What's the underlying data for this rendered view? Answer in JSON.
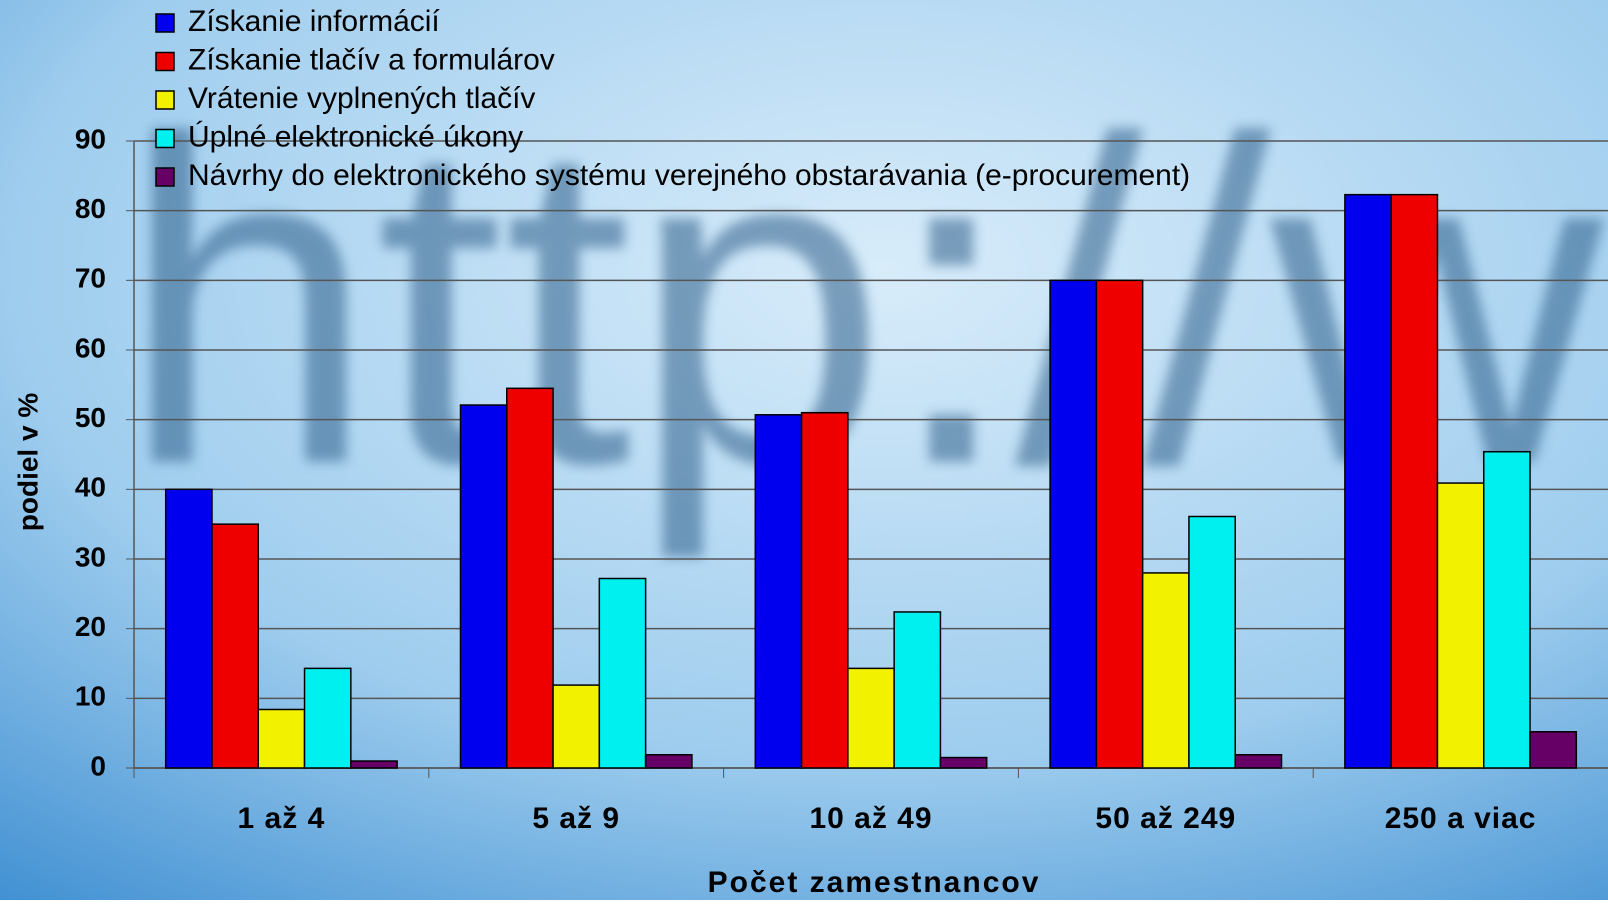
{
  "background_text": "http://w",
  "chart_data": {
    "type": "bar",
    "x_label": "Počet zamestnancov",
    "y_label": "podiel v %",
    "categories": [
      "1 až 4",
      "5 až 9",
      "10 až 49",
      "50 až 249",
      "250 a viac"
    ],
    "series": [
      {
        "name": "Získanie informácií",
        "color": "#0000ee",
        "values": [
          40,
          52.1,
          50.7,
          70,
          82.3
        ]
      },
      {
        "name": "Získanie tlačív a formulárov",
        "color": "#ee0000",
        "values": [
          35,
          54.5,
          51,
          70,
          82.3
        ]
      },
      {
        "name": "Vrátenie vyplnených tlačív",
        "color": "#f2f200",
        "values": [
          8.4,
          11.9,
          14.3,
          28,
          40.9
        ]
      },
      {
        "name": "Úplné elektronické úkony",
        "color": "#00f0f0",
        "values": [
          14.3,
          27.2,
          22.4,
          36.1,
          45.4
        ]
      },
      {
        "name": "Návrhy do elektronického systému verejného obstarávania (e-procurement)",
        "color": "#660066",
        "values": [
          1,
          1.9,
          1.5,
          1.9,
          5.2
        ]
      }
    ],
    "ylim": [
      0,
      90
    ],
    "yticks": [
      0,
      10,
      20,
      30,
      40,
      50,
      60,
      70,
      80,
      90
    ],
    "grid": true,
    "legend": "top-left"
  }
}
